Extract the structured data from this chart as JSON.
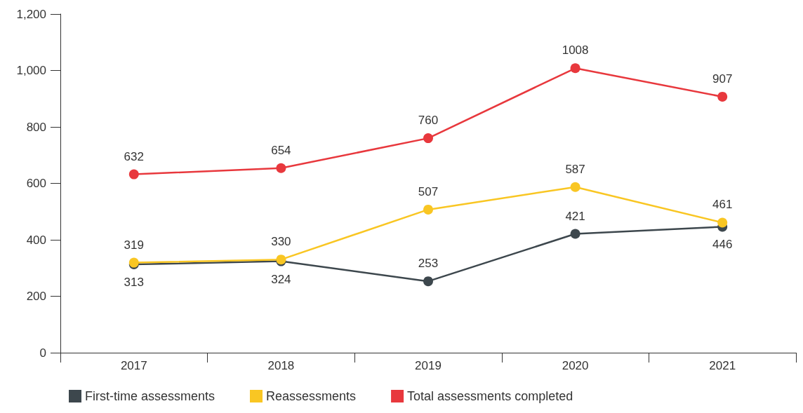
{
  "chart_data": {
    "type": "line",
    "categories": [
      "2017",
      "2018",
      "2019",
      "2020",
      "2021"
    ],
    "series": [
      {
        "name": "First-time assessments",
        "color": "#3d474d",
        "values": [
          313,
          324,
          253,
          421,
          446
        ]
      },
      {
        "name": "Reassessments",
        "color": "#f9c623",
        "values": [
          319,
          330,
          507,
          587,
          461
        ]
      },
      {
        "name": "Total assessments completed",
        "color": "#e8383d",
        "values": [
          632,
          654,
          760,
          1008,
          907
        ]
      }
    ],
    "ylim": [
      0,
      1200
    ],
    "yticks": [
      0,
      200,
      400,
      600,
      800,
      {
        "value": 1000,
        "label": "1,000"
      },
      {
        "value": 1200,
        "label": "1,200"
      }
    ],
    "grid": false,
    "legend": "bottom",
    "marker": "circle",
    "line_style": "solid",
    "data_labels": true
  }
}
